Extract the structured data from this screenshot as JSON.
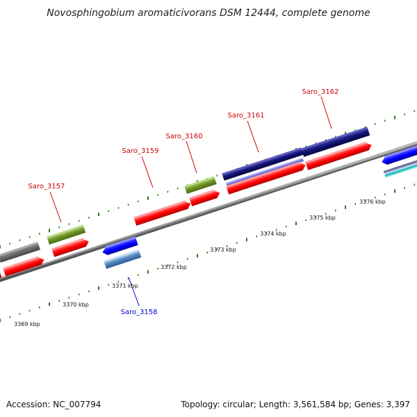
{
  "title": "Novosphingobium aromaticivorans DSM 12444, complete genome",
  "footer": {
    "accession": "Accession: NC_007794",
    "summary": "Topology: circular; Length: 3,561,584 bp; Genes: 3,397"
  },
  "colors": {
    "forward_label": "#cc0000",
    "reverse_label": "#0000cc",
    "tick": "#2a7a1a",
    "backbone": "#8a8a8a"
  },
  "axis_labels": [
    "3369 kbp",
    "3370 kbp",
    "3371 kbp",
    "3372 kbp",
    "3373 kbp",
    "3374 kbp",
    "3375 kbp",
    "3376 kbp"
  ],
  "gene_labels": [
    {
      "text": "Saro_3157",
      "strand": "forward"
    },
    {
      "text": "Saro_3158",
      "strand": "reverse"
    },
    {
      "text": "Saro_3159",
      "strand": "forward"
    },
    {
      "text": "Saro_3160",
      "strand": "forward"
    },
    {
      "text": "Saro_3161",
      "strand": "forward"
    },
    {
      "text": "Saro_3162",
      "strand": "forward"
    }
  ]
}
